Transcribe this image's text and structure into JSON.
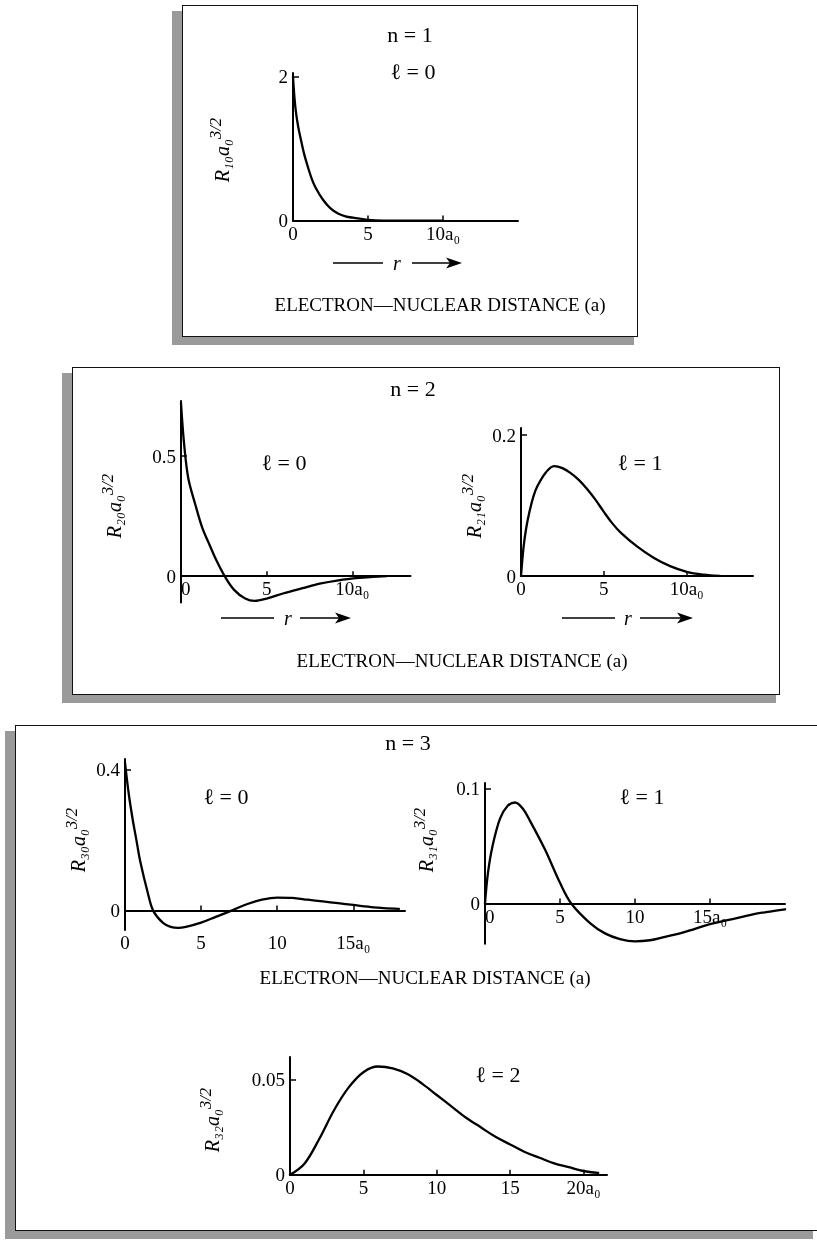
{
  "chart_data": [
    {
      "type": "line",
      "title": "ℓ = 0",
      "xlabel": "r",
      "ylabel": "R₁₀a₀$^{3/2}$",
      "annotations": [
        "n = 1",
        "ELECTRON—NUCLEAR DISTANCE (a)"
      ],
      "x": [
        0,
        0.1,
        0.2,
        0.35,
        0.5,
        0.75,
        1,
        1.25,
        1.5,
        2,
        2.5,
        3,
        3.5,
        4,
        5,
        6,
        10
      ],
      "values": [
        2,
        1.7,
        1.5,
        1.3,
        1.15,
        0.92,
        0.74,
        0.58,
        0.46,
        0.29,
        0.17,
        0.1,
        0.06,
        0.04,
        0.01,
        0,
        0
      ],
      "color": "#000000",
      "xlim": [
        0,
        15
      ],
      "ylim": [
        0,
        2.05
      ],
      "xticks": [
        0,
        5,
        {
          "value": 10,
          "label": "10a₀"
        }
      ],
      "yticks": [
        0,
        2
      ]
    },
    {
      "type": "line",
      "title": "ℓ = 0",
      "xlabel": "r",
      "ylabel": "R₂₀a₀$^{3/2}$",
      "annotations": [
        "n = 2",
        "ELECTRON—NUCLEAR DISTANCE (a)"
      ],
      "x": [
        0,
        0.17,
        0.42,
        0.83,
        1.25,
        1.67,
        2.08,
        2.55,
        3.1,
        3.75,
        4.3,
        5,
        6,
        7.1,
        8.1,
        9.2,
        10.4,
        11.2,
        12
      ],
      "values": [
        0.72,
        0.56,
        0.41,
        0.3,
        0.2,
        0.13,
        0.064,
        0,
        -0.057,
        -0.093,
        -0.103,
        -0.093,
        -0.071,
        -0.05,
        -0.031,
        -0.017,
        -0.007,
        -0.003,
        0
      ],
      "color": "#000000",
      "xlim": [
        0,
        13.4
      ],
      "ylim": [
        -0.11,
        0.73
      ],
      "xticks": [
        0,
        5,
        {
          "value": 10,
          "label": "10a₀"
        }
      ],
      "yticks": [
        0,
        0.5
      ]
    },
    {
      "type": "line",
      "title": "ℓ = 1",
      "xlabel": "r",
      "ylabel": "R₂₁a₀$^{3/2}$",
      "x": [
        0,
        0.15,
        0.3,
        0.5,
        0.75,
        1,
        1.5,
        2,
        2.5,
        3,
        3.5,
        4,
        4.5,
        5,
        5.5,
        6,
        7,
        8,
        9,
        10,
        11,
        12
      ],
      "values": [
        0,
        0.04,
        0.066,
        0.09,
        0.113,
        0.128,
        0.147,
        0.156,
        0.153,
        0.146,
        0.136,
        0.123,
        0.108,
        0.091,
        0.075,
        0.062,
        0.042,
        0.026,
        0.014,
        0.006,
        0.002,
        0
      ],
      "color": "#000000",
      "xlim": [
        0,
        14
      ],
      "ylim": [
        0,
        0.21
      ],
      "xticks": [
        0,
        5,
        {
          "value": 10,
          "label": "10a₀"
        }
      ],
      "yticks": [
        0,
        0.2
      ]
    },
    {
      "type": "line",
      "title": "ℓ = 0",
      "ylabel": "R₃₀a₀$^{3/2}$",
      "annotations": [
        "n = 3",
        "ELECTRON—NUCLEAR DISTANCE (a)"
      ],
      "x": [
        0,
        0.25,
        0.5,
        0.75,
        1,
        1.5,
        1.85,
        2.5,
        3,
        3.5,
        4,
        5,
        6,
        7,
        8,
        9,
        10,
        11,
        12,
        13,
        14,
        15,
        16,
        17,
        18
      ],
      "values": [
        0.42,
        0.33,
        0.26,
        0.2,
        0.14,
        0.05,
        0,
        -0.035,
        -0.046,
        -0.049,
        -0.046,
        -0.034,
        -0.017,
        0,
        0.018,
        0.031,
        0.037,
        0.036,
        0.031,
        0.026,
        0.021,
        0.016,
        0.011,
        0.007,
        0.005
      ],
      "color": "#000000",
      "xlim": [
        0,
        18.4
      ],
      "ylim": [
        -0.055,
        0.43
      ],
      "xticks": [
        0,
        5,
        10,
        {
          "value": 15,
          "label": "15a₀"
        }
      ],
      "yticks": [
        0,
        0.4
      ]
    },
    {
      "type": "line",
      "title": "ℓ = 1",
      "ylabel": "R₃₁a₀$^{3/2}$",
      "x": [
        0,
        0.2,
        0.5,
        1,
        1.5,
        2,
        2.5,
        3,
        4,
        5,
        5.75,
        7,
        8,
        9,
        10,
        11,
        12,
        13,
        14,
        15,
        16,
        17,
        18,
        19,
        20
      ],
      "values": [
        0,
        0.027,
        0.05,
        0.074,
        0.085,
        0.088,
        0.083,
        0.072,
        0.047,
        0.018,
        0,
        -0.017,
        -0.026,
        -0.031,
        -0.033,
        -0.032,
        -0.029,
        -0.026,
        -0.022,
        -0.018,
        -0.015,
        -0.012,
        -0.009,
        -0.007,
        -0.005
      ],
      "color": "#000000",
      "xlim": [
        0,
        20
      ],
      "ylim": [
        -0.035,
        0.105
      ],
      "xticks": [
        0,
        5,
        10,
        {
          "value": 15,
          "label": "15a₀"
        }
      ],
      "yticks": [
        0,
        0.1
      ]
    },
    {
      "type": "line",
      "title": "ℓ = 2",
      "ylabel": "R₃₂a₀$^{3/2}$",
      "x": [
        0,
        1,
        2,
        3,
        4,
        5,
        6,
        7,
        8,
        9,
        10,
        11,
        12,
        13,
        14,
        15,
        16,
        17,
        18,
        19,
        20,
        21
      ],
      "values": [
        0,
        0.006,
        0.019,
        0.034,
        0.046,
        0.054,
        0.057,
        0.056,
        0.053,
        0.048,
        0.042,
        0.036,
        0.03,
        0.025,
        0.02,
        0.016,
        0.012,
        0.009,
        0.006,
        0.004,
        0.002,
        0.001
      ],
      "color": "#000000",
      "xlim": [
        0,
        21.6
      ],
      "ylim": [
        0,
        0.062
      ],
      "xticks": [
        0,
        5,
        10,
        15,
        {
          "value": 20,
          "label": "20a₀"
        }
      ],
      "yticks": [
        0,
        0.05
      ]
    }
  ]
}
